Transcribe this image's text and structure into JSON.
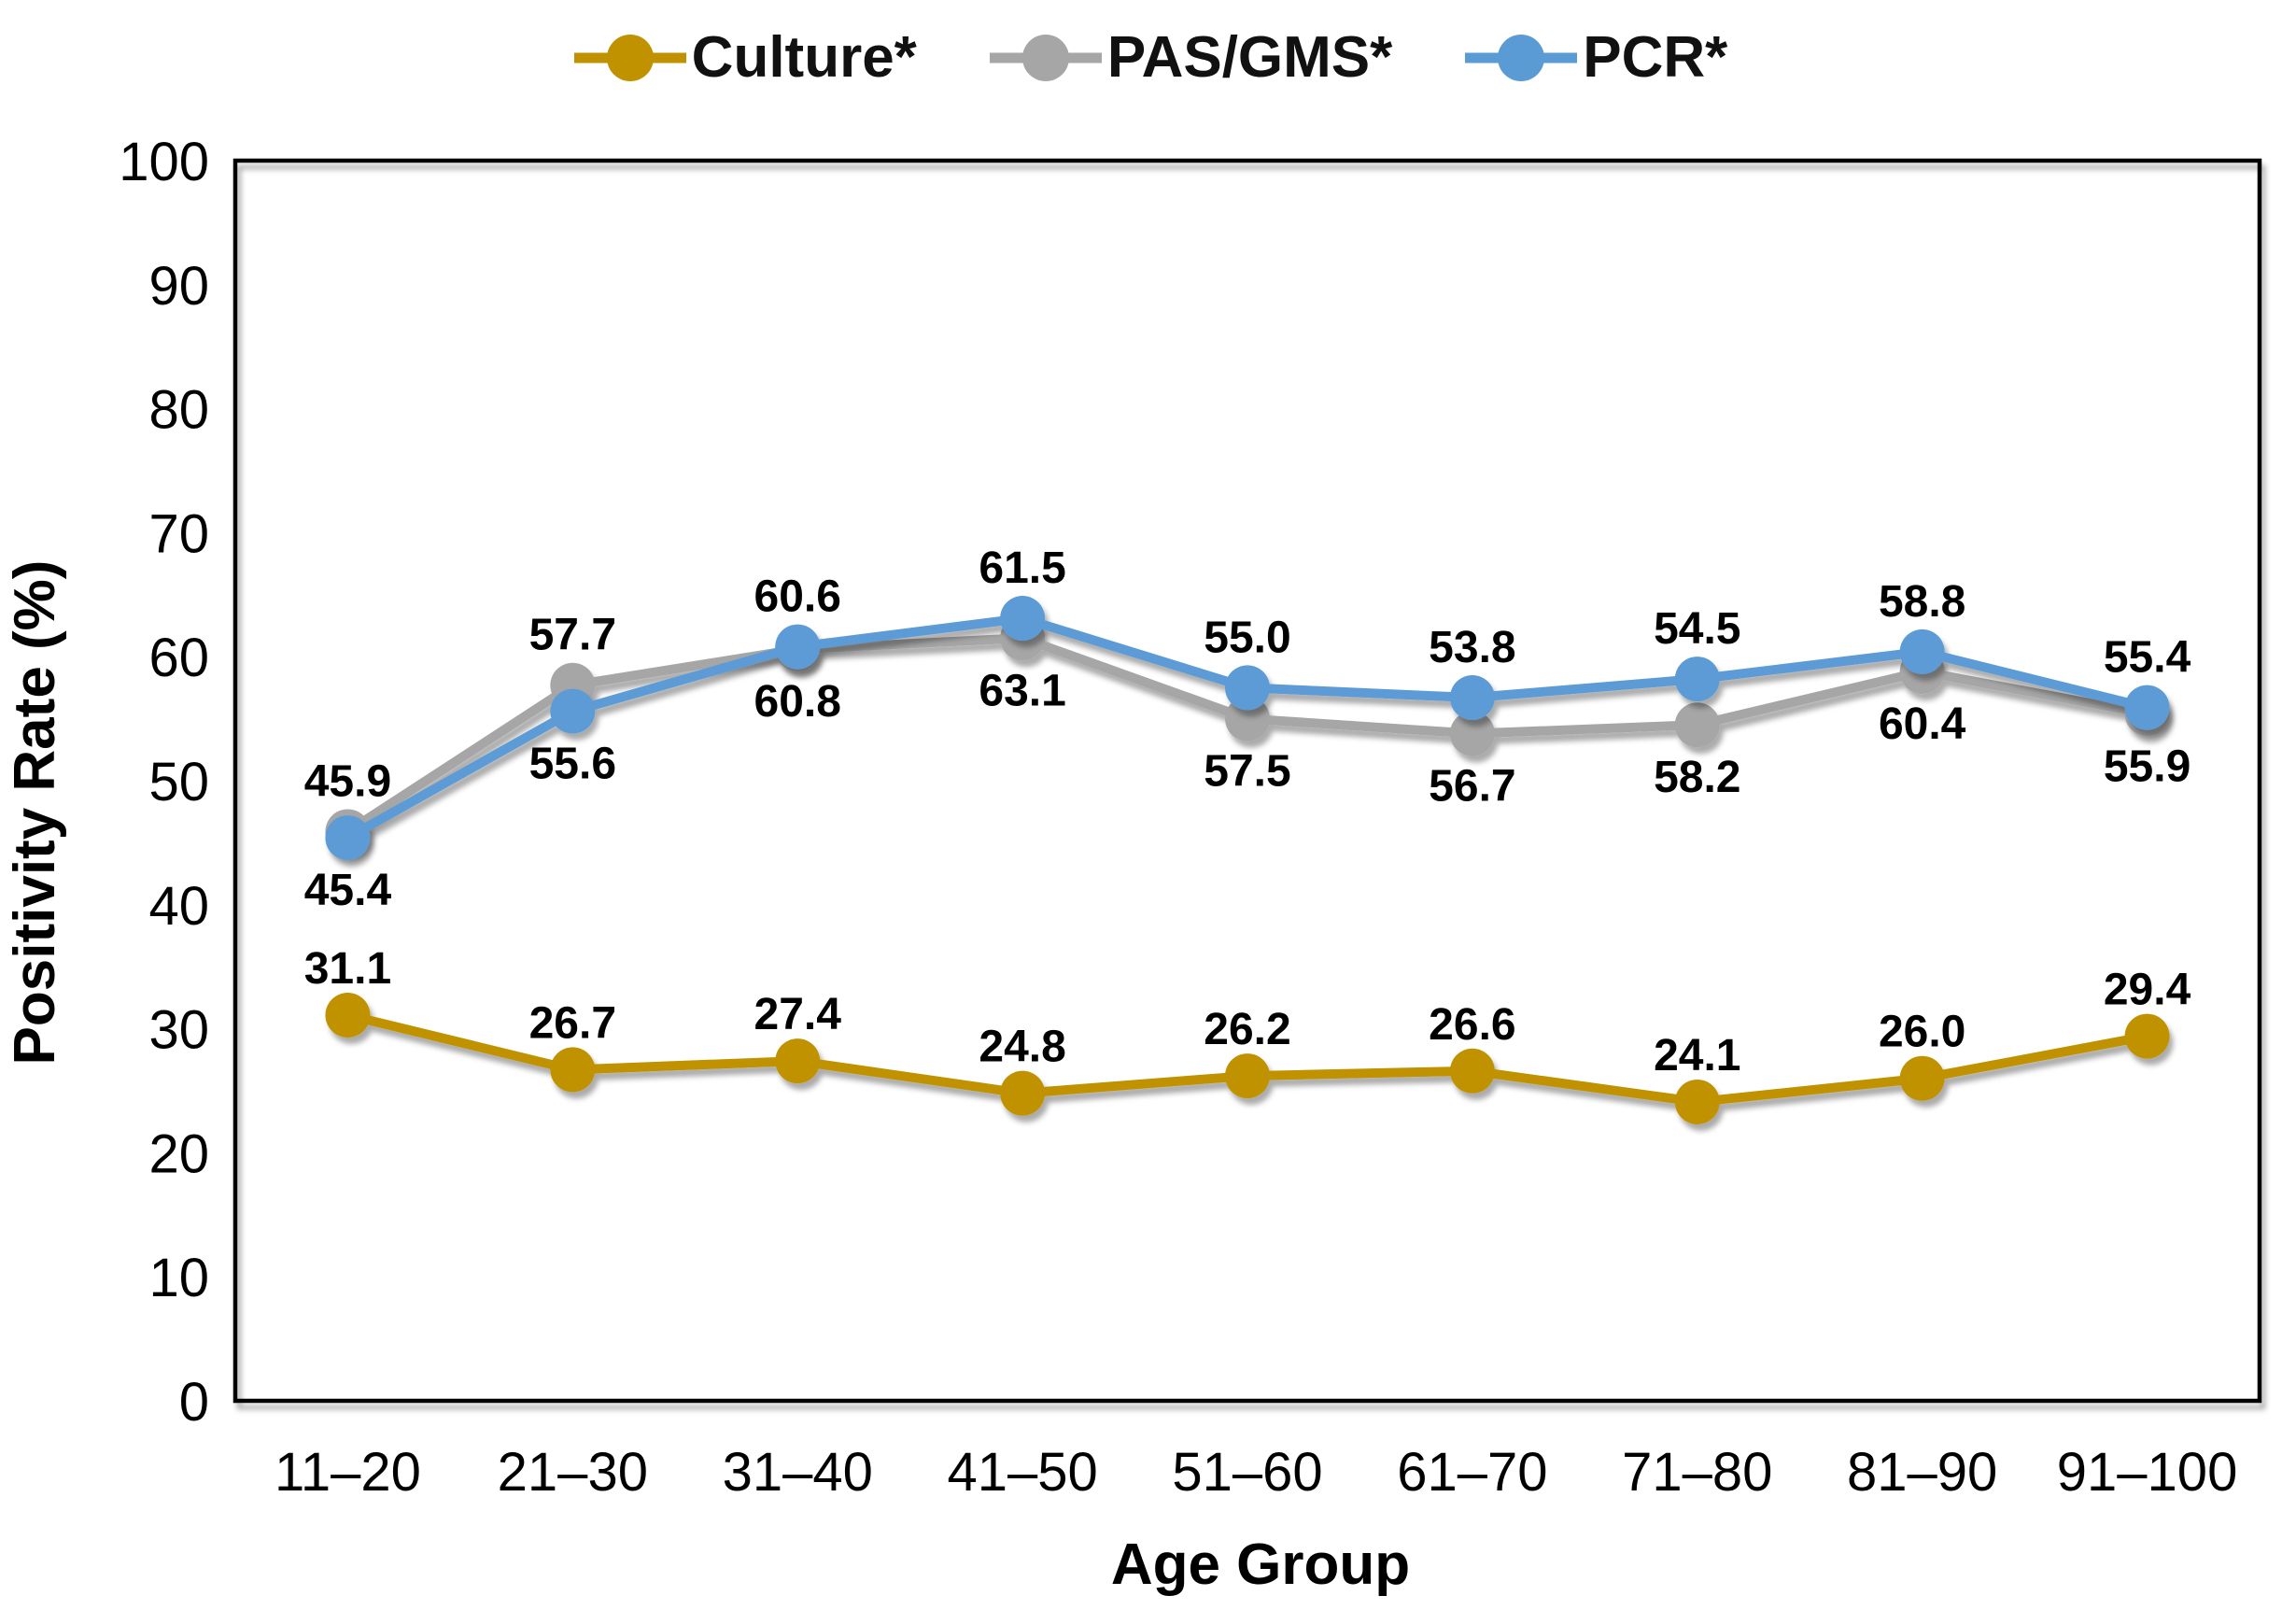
{
  "page": {
    "background": "#ffffff"
  },
  "legend": {
    "items": [
      {
        "label": "Culture*",
        "color": "#C09200"
      },
      {
        "label": "PAS/GMS*",
        "color": "#A6A6A6"
      },
      {
        "label": "PCR*",
        "color": "#5B9BD5"
      }
    ]
  },
  "chart_data": {
    "type": "line",
    "title": "",
    "categories": [
      "11–20",
      "21–30",
      "31–40",
      "41–50",
      "51–60",
      "61–70",
      "71–80",
      "81–90",
      "91–100"
    ],
    "series": [
      {
        "name": "Culture*",
        "color": "#C09200",
        "values": [
          31.1,
          26.7,
          27.4,
          24.8,
          26.2,
          26.6,
          24.1,
          26.0,
          29.4
        ],
        "label_position": "above-self"
      },
      {
        "name": "PAS/GMS*",
        "color": "#A6A6A6",
        "values": [
          45.9,
          57.7,
          60.6,
          61.5,
          55.0,
          53.8,
          54.5,
          58.8,
          55.4
        ],
        "label_position": "above-pair"
      },
      {
        "name": "PCR*",
        "color": "#5B9BD5",
        "values": [
          45.4,
          55.6,
          60.8,
          63.1,
          57.5,
          56.7,
          58.2,
          60.4,
          55.9
        ],
        "label_position": "below-pair"
      }
    ],
    "xlabel": "Age Group",
    "ylabel": "Positivity Rate (%)",
    "ylim": [
      0,
      100
    ],
    "y_ticks": [
      0,
      10,
      20,
      30,
      40,
      50,
      60,
      70,
      80,
      90,
      100
    ],
    "grid": false,
    "legend_position": "top",
    "axis_color": "#000000",
    "label_color": "#000000"
  }
}
